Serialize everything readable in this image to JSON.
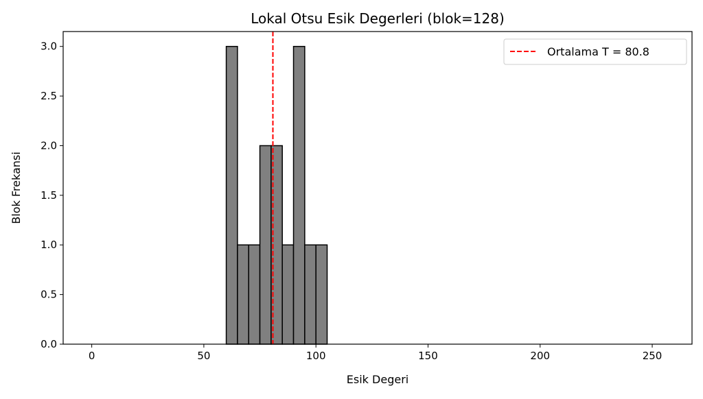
{
  "chart_data": {
    "type": "bar",
    "title": "Lokal Otsu Esik Degerleri (blok=128)",
    "xlabel": "Esik Degeri",
    "ylabel": "Blok Frekansi",
    "xlim": [
      -12.75,
      267.75
    ],
    "ylim": [
      0,
      3.15
    ],
    "xticks": [
      0,
      50,
      100,
      150,
      200,
      250
    ],
    "yticks": [
      0.0,
      0.5,
      1.0,
      1.5,
      2.0,
      2.5,
      3.0
    ],
    "bins": [
      {
        "x0": 60,
        "x1": 65,
        "value": 3
      },
      {
        "x0": 65,
        "x1": 70,
        "value": 1
      },
      {
        "x0": 70,
        "x1": 75,
        "value": 1
      },
      {
        "x0": 75,
        "x1": 80,
        "value": 2
      },
      {
        "x0": 80,
        "x1": 85,
        "value": 2
      },
      {
        "x0": 85,
        "x1": 90,
        "value": 1
      },
      {
        "x0": 90,
        "x1": 95,
        "value": 3
      },
      {
        "x0": 95,
        "x1": 100,
        "value": 1
      },
      {
        "x0": 100,
        "x1": 105,
        "value": 1
      }
    ],
    "bar_color": "#808080",
    "bar_edge_color": "#000000",
    "mean_line": {
      "value": 80.8,
      "label": "Ortalama T = 80.8",
      "color": "#ff0000",
      "style": "dashed"
    },
    "legend_position": "top-right",
    "grid": false
  }
}
